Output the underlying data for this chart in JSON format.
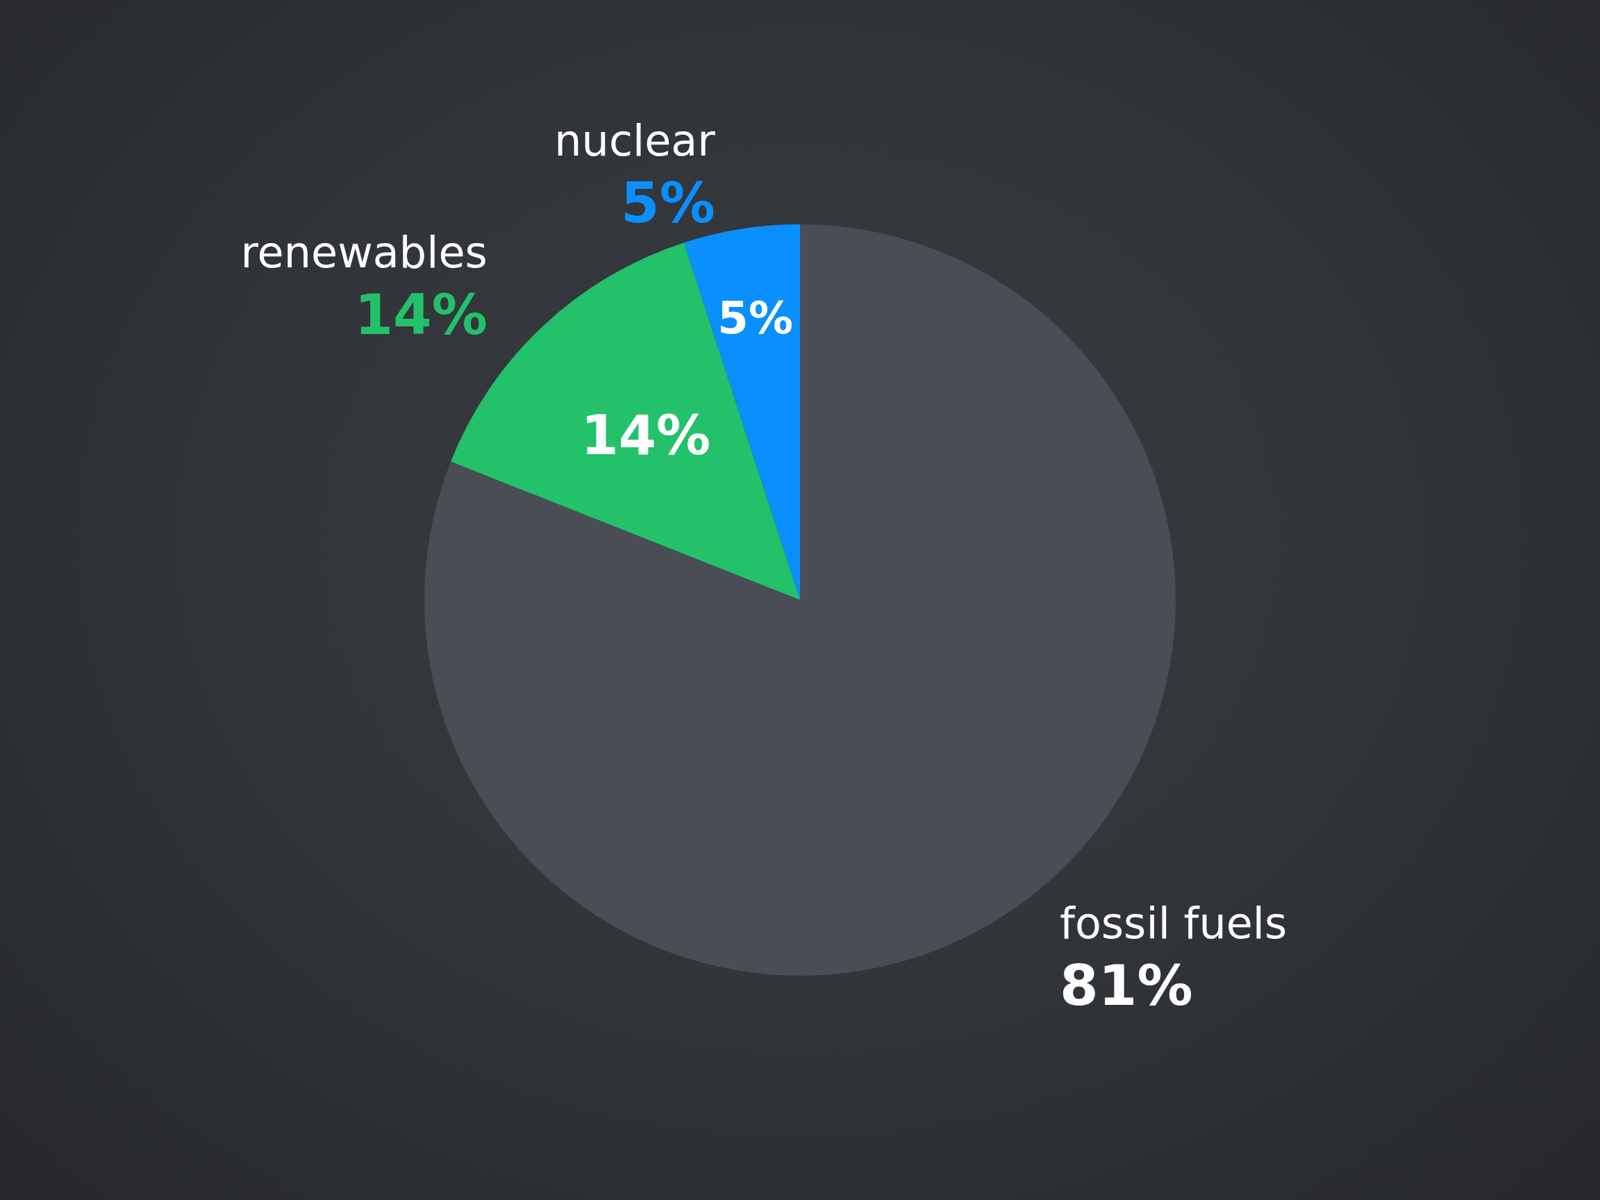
{
  "chart_data": {
    "type": "pie",
    "categories": [
      "nuclear",
      "renewables",
      "fossil fuels"
    ],
    "values": [
      5,
      14,
      81
    ],
    "colors": [
      "#0a8fff",
      "#22c16a",
      "#4a4e54"
    ],
    "value_labels": [
      "5%",
      "14%",
      "81%"
    ]
  }
}
